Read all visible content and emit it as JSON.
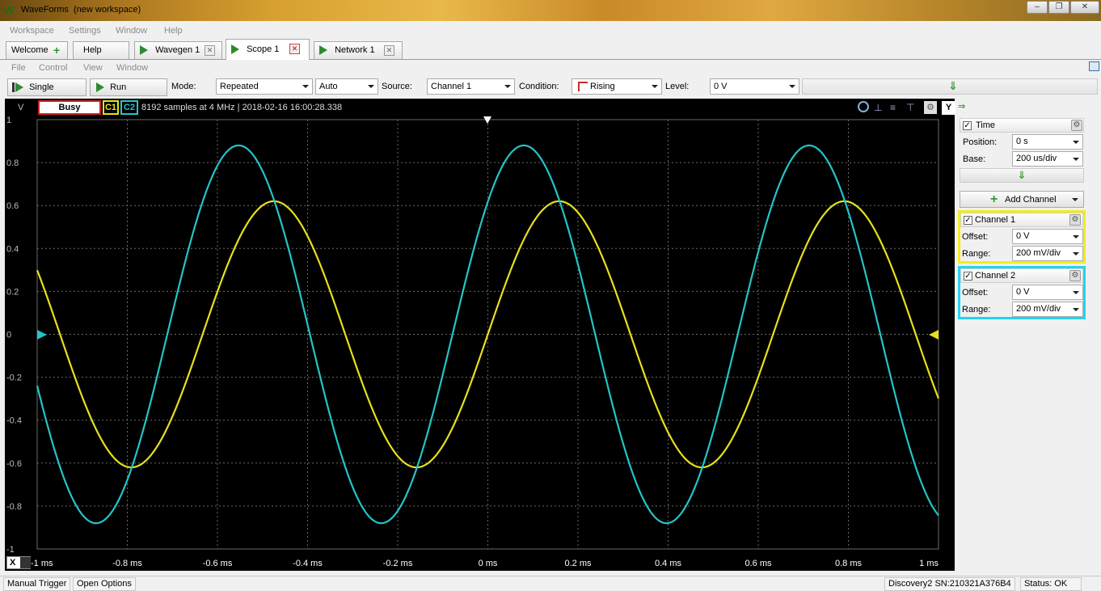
{
  "app": {
    "title": "WaveForms",
    "workspace": "(new workspace)"
  },
  "menu_main": [
    "Workspace",
    "Settings",
    "Window",
    "Help"
  ],
  "tabs": [
    {
      "label": "Welcome",
      "icon": "plus-icon"
    },
    {
      "label": "Help"
    },
    {
      "label": "Wavegen 1",
      "icon": "play-icon"
    },
    {
      "label": "Scope 1",
      "icon": "play-icon",
      "active": true
    },
    {
      "label": "Network 1",
      "icon": "play-icon"
    }
  ],
  "menu_scope": [
    "File",
    "Control",
    "View",
    "Window"
  ],
  "toolbar": {
    "single_label": "Single",
    "run_label": "Run",
    "mode_label": "Mode:",
    "mode_value": "Repeated",
    "auto_value": "Auto",
    "source_label": "Source:",
    "source_value": "Channel 1",
    "condition_label": "Condition:",
    "condition_value": "Rising",
    "level_label": "Level:",
    "level_value": "0 V"
  },
  "plot_header": {
    "y_unit": "V",
    "state": "Busy",
    "c1": "C1",
    "c2": "C2",
    "info": "8192 samples at 4 MHz | 2018-02-16 16:00:28.338",
    "y_button": "Y"
  },
  "colors": {
    "c1": "#e6e01e",
    "c2": "#24c4c8",
    "grid": "#6a6a6a",
    "axis": "#bbbbbb"
  },
  "chart_data": {
    "type": "line",
    "xlabel": "Time",
    "ylabel": "V",
    "xlim": [
      -1,
      1
    ],
    "ylim": [
      -1,
      1
    ],
    "x_ticks": [
      "-1 ms",
      "-0.8 ms",
      "-0.6 ms",
      "-0.4 ms",
      "-0.2 ms",
      "0 ms",
      "0.2 ms",
      "0.4 ms",
      "0.6 ms",
      "0.8 ms",
      "1 ms"
    ],
    "y_ticks": [
      "1",
      "0.8",
      "0.6",
      "0.4",
      "0.2",
      "0",
      "-0.2",
      "-0.4",
      "-0.6",
      "-0.8",
      "-1"
    ],
    "series": [
      {
        "name": "Channel 1",
        "amplitude": 0.62,
        "frequency_khz": 1.58,
        "phase_deg": 0,
        "x_axis_unit": "ms"
      },
      {
        "name": "Channel 2",
        "amplitude": 0.88,
        "frequency_khz": 1.58,
        "phase_deg": 44.6,
        "x_axis_unit": "ms"
      }
    ]
  },
  "panel": {
    "time": {
      "title": "Time",
      "position_label": "Position:",
      "position_value": "0 s",
      "base_label": "Base:",
      "base_value": "200 us/div"
    },
    "add_channel": "Add Channel",
    "ch1": {
      "title": "Channel 1",
      "offset_label": "Offset:",
      "offset_value": "0 V",
      "range_label": "Range:",
      "range_value": "200 mV/div"
    },
    "ch2": {
      "title": "Channel 2",
      "offset_label": "Offset:",
      "offset_value": "0 V",
      "range_label": "Range:",
      "range_value": "200 mV/div"
    }
  },
  "statusbar": {
    "manual_trigger": "Manual Trigger",
    "open_options": "Open Options",
    "device": "Discovery2 SN:210321A376B4",
    "status": "Status: OK"
  },
  "x_axis_button": "X"
}
